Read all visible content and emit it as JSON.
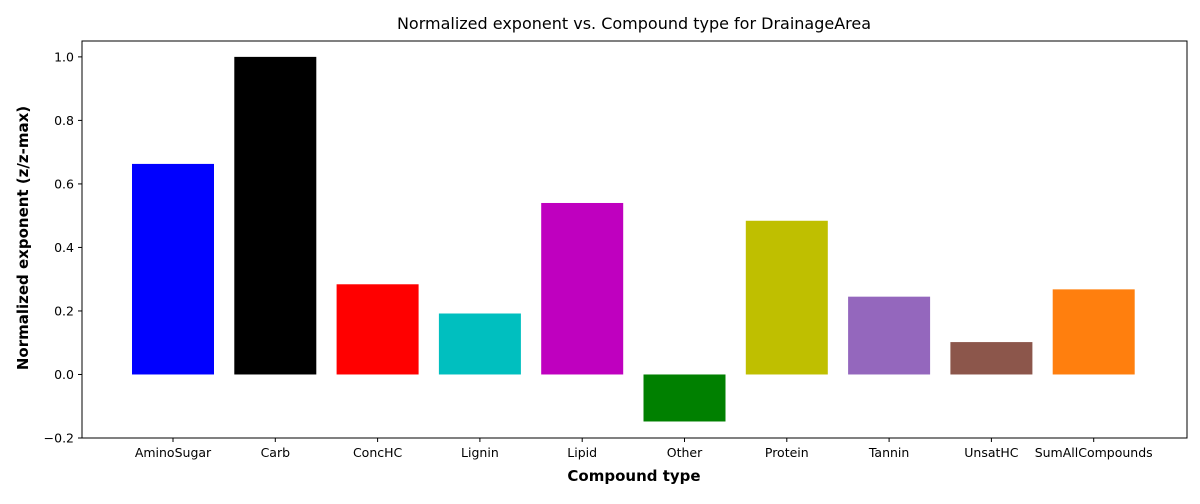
{
  "chart_data": {
    "type": "bar",
    "title": "Normalized exponent vs. Compound type for DrainageArea",
    "xlabel": "Compound type",
    "ylabel": "Normalized exponent (z/z-max)",
    "categories": [
      "AminoSugar",
      "Carb",
      "ConcHC",
      "Lignin",
      "Lipid",
      "Other",
      "Protein",
      "Tannin",
      "UnsatHC",
      "SumAllCompounds"
    ],
    "values": [
      0.663,
      1.0,
      0.284,
      0.192,
      0.54,
      -0.148,
      0.484,
      0.245,
      0.102,
      0.268
    ],
    "colors": [
      "#0000ff",
      "#000000",
      "#ff0000",
      "#00bfbf",
      "#bf00bf",
      "#008000",
      "#bfbf00",
      "#9467bd",
      "#8c564b",
      "#ff7f0e"
    ],
    "ylim": [
      -0.2,
      1.05
    ],
    "yticks": [
      -0.2,
      0.0,
      0.2,
      0.4,
      0.6,
      0.8,
      1.0
    ],
    "ytick_labels": [
      "−0.2",
      "0.0",
      "0.2",
      "0.4",
      "0.6",
      "0.8",
      "1.0"
    ],
    "grid": false,
    "legend": "none"
  }
}
